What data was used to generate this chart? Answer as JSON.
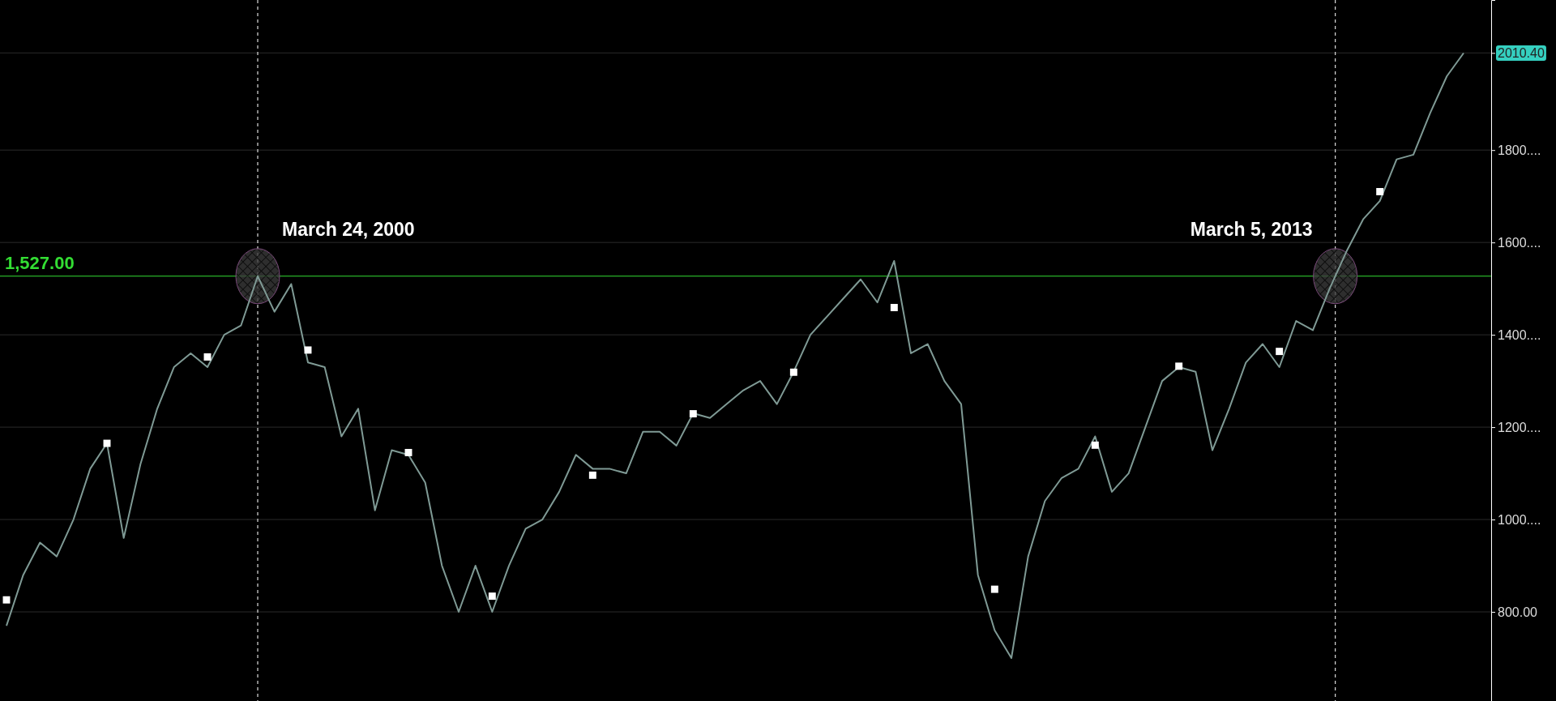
{
  "chart_data": {
    "type": "line",
    "categories": [
      null,
      null,
      null,
      null,
      null,
      null,
      null,
      null,
      null,
      null,
      null,
      null,
      null,
      null,
      null,
      null,
      null,
      null,
      null,
      null,
      null,
      null,
      null,
      null,
      null,
      null,
      null,
      null,
      null,
      null,
      null,
      null,
      null,
      null,
      null,
      null,
      null,
      null,
      null,
      null,
      null,
      null,
      null,
      null,
      null,
      null,
      null,
      null,
      null,
      null,
      null,
      null,
      null,
      null,
      null,
      null,
      null,
      null,
      null,
      null,
      null,
      null,
      null,
      null,
      null,
      null,
      null,
      null,
      null,
      null,
      null,
      null,
      null,
      null,
      null,
      null,
      null,
      null,
      null,
      null,
      null,
      null,
      null,
      null,
      null,
      null,
      null,
      null
    ],
    "ylim": [
      607,
      2125
    ],
    "yticks": [
      {
        "value": 800,
        "label": "800.00"
      },
      {
        "value": 1000,
        "label": "1000...."
      },
      {
        "value": 1200,
        "label": "1200...."
      },
      {
        "value": 1400,
        "label": "1400...."
      },
      {
        "value": 1600,
        "label": "1600...."
      },
      {
        "value": 1800,
        "label": "1800...."
      },
      {
        "value": 2010.4,
        "label": "2010.40"
      }
    ],
    "tick_labels": "y",
    "grid": "y",
    "series": [
      {
        "color": "#7f9a95",
        "values": [
          770,
          880,
          950,
          920,
          1000,
          1110,
          1165,
          960,
          1120,
          1240,
          1330,
          1360,
          1330,
          1400,
          1420,
          1527,
          1450,
          1510,
          1340,
          1330,
          1180,
          1240,
          1020,
          1150,
          1140,
          1080,
          900,
          800,
          900,
          800,
          900,
          980,
          1000,
          1060,
          1140,
          1110,
          1110,
          1100,
          1190,
          1190,
          1160,
          1230,
          1220,
          1250,
          1280,
          1300,
          1250,
          1320,
          1400,
          1440,
          1480,
          1520,
          1470,
          1560,
          1360,
          1380,
          1300,
          1250,
          880,
          760,
          700,
          920,
          1040,
          1090,
          1110,
          1180,
          1060,
          1100,
          1200,
          1300,
          1330,
          1320,
          1150,
          1240,
          1340,
          1380,
          1330,
          1430,
          1410,
          1500,
          1580,
          1650,
          1690,
          1780,
          1790,
          1880,
          1960,
          2010
        ]
      },
      {
        "type": "scatter",
        "color": "#ffffff",
        "marker": "square",
        "values": [
          826,
          null,
          null,
          null,
          null,
          null,
          1165,
          null,
          null,
          null,
          null,
          null,
          1352,
          null,
          null,
          null,
          null,
          null,
          1367,
          null,
          null,
          null,
          null,
          null,
          1145,
          null,
          null,
          null,
          null,
          834,
          null,
          null,
          null,
          null,
          null,
          1096,
          null,
          null,
          null,
          null,
          null,
          1229,
          null,
          null,
          null,
          null,
          null,
          1319,
          null,
          null,
          null,
          null,
          null,
          1459,
          null,
          null,
          null,
          null,
          null,
          849,
          null,
          null,
          null,
          null,
          null,
          1161,
          null,
          null,
          null,
          null,
          1332,
          null,
          null,
          null,
          null,
          null,
          1364,
          null,
          null,
          null,
          null,
          null,
          1710,
          null,
          null,
          null,
          null,
          null
        ]
      }
    ],
    "ref_lines": [
      {
        "axis": "y",
        "value": 1527,
        "label": "1,527.00",
        "color": "#33dd33"
      }
    ],
    "annotations": [
      {
        "text": "March 24, 2000",
        "y": 1527
      },
      {
        "text": "March 5, 2013",
        "y": 1527
      }
    ]
  }
}
